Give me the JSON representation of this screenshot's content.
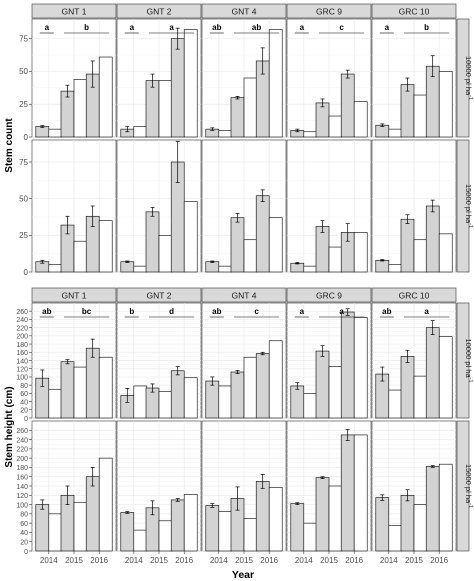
{
  "chart_data": {
    "type": "bar",
    "xlabel": "Year",
    "categories": [
      "2014",
      "2015",
      "2016"
    ],
    "genotypes": [
      "GNT 1",
      "GNT 2",
      "GNT 4",
      "GRC 9",
      "GRC 10"
    ],
    "densities": [
      "10000 pl ha-1",
      "15000 pl ha-1"
    ],
    "density_parts": [
      {
        "main": "10000 pl ha",
        "sup": "-1"
      },
      {
        "main": "15000 pl ha",
        "sup": "-1"
      }
    ],
    "colors": {
      "gray_bar": "#d3d3d3",
      "white_bar": "#ffffff",
      "strip": "#d9d9d9",
      "grid": "#ebebeb",
      "axis_text": "#4d4d4d"
    },
    "blocks": [
      {
        "ylabel": "Stem count",
        "ylim": [
          0,
          90
        ],
        "yticks": [
          0,
          25,
          50,
          75
        ],
        "letters": [
          {
            "left": "a",
            "right": "b"
          },
          {
            "left": "a",
            "right": "a"
          },
          {
            "left": "ab",
            "right": "ab"
          },
          {
            "left": "a",
            "right": "c"
          },
          {
            "left": "a",
            "right": "b"
          }
        ],
        "rows": [
          [
            {
              "gray": [
                8,
                35,
                48
              ],
              "white": [
                6,
                44,
                61
              ],
              "err": [
                0.8,
                4.5,
                10
              ]
            },
            {
              "gray": [
                6,
                43,
                75
              ],
              "white": [
                8,
                43,
                82
              ],
              "err": [
                2,
                5,
                8
              ]
            },
            {
              "gray": [
                6,
                30,
                58
              ],
              "white": [
                5,
                45,
                82
              ],
              "err": [
                1,
                1,
                10
              ]
            },
            {
              "gray": [
                5,
                26,
                48
              ],
              "white": [
                4,
                16,
                27
              ],
              "err": [
                1,
                3,
                3
              ]
            },
            {
              "gray": [
                9,
                40,
                54
              ],
              "white": [
                6,
                32,
                50
              ],
              "err": [
                1,
                5,
                8
              ]
            }
          ],
          [
            {
              "gray": [
                7,
                32,
                38
              ],
              "white": [
                5,
                21,
                35
              ],
              "err": [
                1,
                6,
                7
              ]
            },
            {
              "gray": [
                7,
                41,
                75
              ],
              "white": [
                4,
                25,
                48
              ],
              "err": [
                0.5,
                3,
                14
              ]
            },
            {
              "gray": [
                7,
                37,
                52
              ],
              "white": [
                4,
                22,
                37
              ],
              "err": [
                0.5,
                3,
                4
              ]
            },
            {
              "gray": [
                6,
                31,
                27
              ],
              "white": [
                4,
                17,
                27
              ],
              "err": [
                0.5,
                4,
                6
              ]
            },
            {
              "gray": [
                8,
                36,
                45
              ],
              "white": [
                5,
                22,
                26
              ],
              "err": [
                0.5,
                3,
                4
              ]
            }
          ]
        ]
      },
      {
        "ylabel": "Stem height (cm)",
        "ylim": [
          0,
          280
        ],
        "yticks": [
          0,
          20,
          40,
          60,
          80,
          100,
          120,
          140,
          160,
          180,
          200,
          220,
          240,
          260
        ],
        "letters": [
          {
            "left": "ab",
            "right": "bc"
          },
          {
            "left": "b",
            "right": "d"
          },
          {
            "left": "ab",
            "right": "c"
          },
          {
            "left": "a",
            "right": "a"
          },
          {
            "left": "ab",
            "right": "a"
          }
        ],
        "rows": [
          [
            {
              "gray": [
                97,
                137,
                170
              ],
              "white": [
                70,
                124,
                148
              ],
              "err": [
                20,
                5,
                22
              ]
            },
            {
              "gray": [
                55,
                73,
                115
              ],
              "white": [
                78,
                65,
                98
              ],
              "err": [
                17,
                10,
                10
              ]
            },
            {
              "gray": [
                90,
                112,
                157
              ],
              "white": [
                78,
                148,
                188
              ],
              "err": [
                10,
                4,
                3
              ]
            },
            {
              "gray": [
                78,
                163,
                258
              ],
              "white": [
                60,
                125,
                245
              ],
              "err": [
                8,
                13,
                8
              ]
            },
            {
              "gray": [
                107,
                150,
                220
              ],
              "white": [
                68,
                102,
                198
              ],
              "err": [
                17,
                15,
                17
              ]
            }
          ],
          [
            {
              "gray": [
                100,
                120,
                160
              ],
              "white": [
                80,
                105,
                200
              ],
              "err": [
                10,
                20,
                20
              ]
            },
            {
              "gray": [
                83,
                93,
                110
              ],
              "white": [
                45,
                65,
                122
              ],
              "err": [
                2,
                15,
                3
              ]
            },
            {
              "gray": [
                98,
                113,
                150
              ],
              "white": [
                85,
                70,
                137
              ],
              "err": [
                4,
                25,
                15
              ]
            },
            {
              "gray": [
                102,
                158,
                250
              ],
              "white": [
                60,
                140,
                250
              ],
              "err": [
                2,
                2,
                12
              ]
            },
            {
              "gray": [
                115,
                120,
                182
              ],
              "white": [
                55,
                100,
                187
              ],
              "err": [
                6,
                12,
                2
              ]
            }
          ]
        ]
      }
    ]
  }
}
